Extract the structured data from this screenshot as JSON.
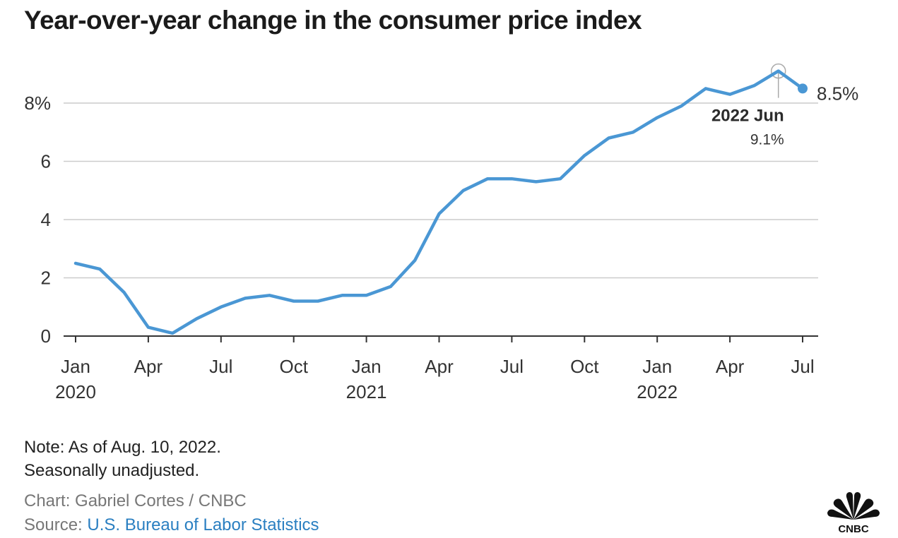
{
  "title": "Year-over-year change in the consumer price index",
  "chart_data": {
    "type": "line",
    "title": "Year-over-year change in the consumer price index",
    "xlabel": "",
    "ylabel": "",
    "ylim": [
      0,
      9.5
    ],
    "y_ticks": [
      {
        "value": 0,
        "label": "0"
      },
      {
        "value": 2,
        "label": "2"
      },
      {
        "value": 4,
        "label": "4"
      },
      {
        "value": 6,
        "label": "6"
      },
      {
        "value": 8,
        "label": "8%"
      }
    ],
    "x_ticks": [
      {
        "index": 0,
        "month": "Jan",
        "year": "2020"
      },
      {
        "index": 3,
        "month": "Apr",
        "year": ""
      },
      {
        "index": 6,
        "month": "Jul",
        "year": ""
      },
      {
        "index": 9,
        "month": "Oct",
        "year": ""
      },
      {
        "index": 12,
        "month": "Jan",
        "year": "2021"
      },
      {
        "index": 15,
        "month": "Apr",
        "year": ""
      },
      {
        "index": 18,
        "month": "Jul",
        "year": ""
      },
      {
        "index": 21,
        "month": "Oct",
        "year": ""
      },
      {
        "index": 24,
        "month": "Jan",
        "year": "2022"
      },
      {
        "index": 27,
        "month": "Apr",
        "year": ""
      },
      {
        "index": 30,
        "month": "Jul",
        "year": ""
      }
    ],
    "x": [
      "2020-01",
      "2020-02",
      "2020-03",
      "2020-04",
      "2020-05",
      "2020-06",
      "2020-07",
      "2020-08",
      "2020-09",
      "2020-10",
      "2020-11",
      "2020-12",
      "2021-01",
      "2021-02",
      "2021-03",
      "2021-04",
      "2021-05",
      "2021-06",
      "2021-07",
      "2021-08",
      "2021-09",
      "2021-10",
      "2021-11",
      "2021-12",
      "2022-01",
      "2022-02",
      "2022-03",
      "2022-04",
      "2022-05",
      "2022-06",
      "2022-07"
    ],
    "series": [
      {
        "color": "#4a97d4",
        "values": [
          2.5,
          2.3,
          1.5,
          0.3,
          0.1,
          0.6,
          1.0,
          1.3,
          1.4,
          1.2,
          1.2,
          1.4,
          1.4,
          1.7,
          2.6,
          4.2,
          5.0,
          5.4,
          5.4,
          5.3,
          5.4,
          6.2,
          6.8,
          7.0,
          7.5,
          7.9,
          8.5,
          8.3,
          8.6,
          9.1,
          8.5
        ]
      }
    ],
    "grid": true,
    "end_label": "8.5%",
    "annotation": {
      "index": 29,
      "label": "2022 Jun",
      "value_label": "9.1%"
    }
  },
  "footer": {
    "note_line1": "Note: As of Aug. 10, 2022.",
    "note_line2": "Seasonally unadjusted.",
    "credit": "Chart: Gabriel Cortes / CNBC",
    "source_prefix": "Source: ",
    "source_link": "U.S. Bureau of Labor Statistics",
    "logo": "CNBC"
  },
  "colors": {
    "line": "#4a97d4",
    "grid": "#cccccc",
    "axis": "#333333",
    "link": "#2a7fc1"
  }
}
